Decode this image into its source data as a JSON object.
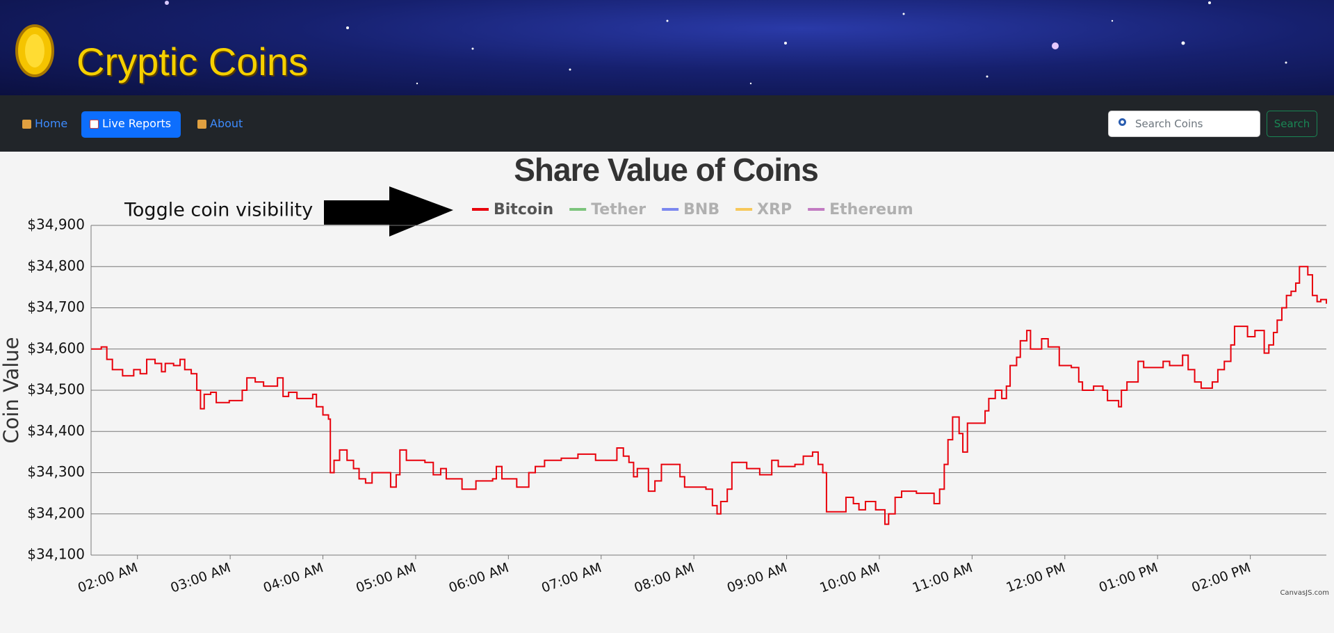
{
  "header": {
    "title": "Cryptic Coins"
  },
  "nav": {
    "links": [
      "Home",
      "Live Reports",
      "About"
    ],
    "active": 1,
    "search_placeholder": "Search Coins",
    "search_button": "Search"
  },
  "chart_data": {
    "type": "line",
    "step": true,
    "title": "Share Value of Coins",
    "annotation": "Toggle coin visibility",
    "credit": "CanvasJS.com",
    "y_label": "Coin Value",
    "x": [
      1.5,
      1.61,
      1.67,
      1.73,
      1.84,
      1.96,
      2.03,
      2.1,
      2.19,
      2.26,
      2.3,
      2.39,
      2.46,
      2.51,
      2.58,
      2.64,
      2.68,
      2.72,
      2.79,
      2.85,
      2.99,
      3.13,
      3.18,
      3.27,
      3.36,
      3.51,
      3.57,
      3.63,
      3.72,
      3.89,
      3.93,
      4.0,
      4.06,
      4.08,
      4.12,
      4.18,
      4.26,
      4.33,
      4.39,
      4.46,
      4.53,
      4.66,
      4.73,
      4.79,
      4.83,
      4.9,
      5.1,
      5.19,
      5.27,
      5.33,
      5.5,
      5.65,
      5.83,
      5.87,
      5.93,
      6.09,
      6.22,
      6.29,
      6.39,
      6.57,
      6.75,
      6.94,
      7.17,
      7.24,
      7.3,
      7.35,
      7.39,
      7.51,
      7.58,
      7.65,
      7.85,
      7.9,
      8.13,
      8.2,
      8.25,
      8.29,
      8.36,
      8.41,
      8.57,
      8.71,
      8.84,
      8.91,
      9.09,
      9.18,
      9.28,
      9.34,
      9.39,
      9.43,
      9.64,
      9.72,
      9.78,
      9.85,
      9.96,
      10.06,
      10.1,
      10.17,
      10.24,
      10.4,
      10.59,
      10.65,
      10.7,
      10.74,
      10.79,
      10.86,
      10.9,
      10.95,
      11.08,
      11.14,
      11.18,
      11.25,
      11.32,
      11.37,
      11.41,
      11.48,
      11.52,
      11.59,
      11.63,
      11.75,
      11.82,
      11.94,
      12.07,
      12.15,
      12.19,
      12.31,
      12.41,
      12.46,
      12.58,
      12.61,
      12.67,
      12.79,
      12.85,
      13.06,
      13.13,
      13.27,
      13.33,
      13.4,
      13.47,
      13.59,
      13.65,
      13.72,
      13.79,
      13.83,
      13.97,
      14.05,
      14.15,
      14.2,
      14.25,
      14.29,
      14.34,
      14.39,
      14.44,
      14.49,
      14.53,
      14.62,
      14.67,
      14.72,
      14.76,
      14.82
    ],
    "series": [
      {
        "name": "Bitcoin",
        "color": "#e8000b",
        "visible": true,
        "values": [
          34600,
          34605,
          34575,
          34550,
          34535,
          34550,
          34540,
          34575,
          34565,
          34545,
          34565,
          34560,
          34575,
          34550,
          34540,
          34500,
          34455,
          34490,
          34495,
          34470,
          34475,
          34500,
          34530,
          34520,
          34510,
          34530,
          34485,
          34495,
          34480,
          34490,
          34460,
          34440,
          34430,
          34300,
          34330,
          34355,
          34330,
          34310,
          34285,
          34275,
          34300,
          34300,
          34265,
          34295,
          34355,
          34330,
          34325,
          34295,
          34310,
          34285,
          34260,
          34280,
          34285,
          34315,
          34285,
          34265,
          34300,
          34315,
          34330,
          34335,
          34345,
          34330,
          34360,
          34340,
          34325,
          34290,
          34310,
          34255,
          34280,
          34320,
          34290,
          34265,
          34260,
          34220,
          34200,
          34230,
          34260,
          34325,
          34310,
          34295,
          34330,
          34315,
          34320,
          34340,
          34350,
          34320,
          34300,
          34205,
          34240,
          34225,
          34210,
          34230,
          34210,
          34175,
          34200,
          34240,
          34255,
          34250,
          34225,
          34260,
          34320,
          34380,
          34435,
          34395,
          34350,
          34420,
          34420,
          34450,
          34480,
          34500,
          34480,
          34510,
          34560,
          34580,
          34620,
          34645,
          34600,
          34625,
          34605,
          34560,
          34555,
          34520,
          34500,
          34510,
          34500,
          34475,
          34460,
          34500,
          34520,
          34570,
          34555,
          34570,
          34560,
          34585,
          34550,
          34520,
          34505,
          34520,
          34550,
          34570,
          34610,
          34655,
          34630,
          34645,
          34590,
          34610,
          34640,
          34670,
          34700,
          34730,
          34740,
          34760,
          34800,
          34780,
          34730,
          34715,
          34720,
          34710
        ]
      },
      {
        "name": "Tether",
        "color": "#7cc47c",
        "visible": false
      },
      {
        "name": "BNB",
        "color": "#7b87ef",
        "visible": false
      },
      {
        "name": "XRP",
        "color": "#f7c85a",
        "visible": false
      },
      {
        "name": "Ethereum",
        "color": "#c27bc2",
        "visible": false
      }
    ],
    "xlim": [
      1.5,
      14.82
    ],
    "xticks": [
      {
        "value": 2,
        "label": "02:00 AM"
      },
      {
        "value": 3,
        "label": "03:00 AM"
      },
      {
        "value": 4,
        "label": "04:00 AM"
      },
      {
        "value": 5,
        "label": "05:00 AM"
      },
      {
        "value": 6,
        "label": "06:00 AM"
      },
      {
        "value": 7,
        "label": "07:00 AM"
      },
      {
        "value": 8,
        "label": "08:00 AM"
      },
      {
        "value": 9,
        "label": "09:00 AM"
      },
      {
        "value": 10,
        "label": "10:00 AM"
      },
      {
        "value": 11,
        "label": "11:00 AM"
      },
      {
        "value": 12,
        "label": "12:00 PM"
      },
      {
        "value": 13,
        "label": "01:00 PM"
      },
      {
        "value": 14,
        "label": "02:00 PM"
      }
    ],
    "ylim": [
      34100,
      34900
    ],
    "yticks": [
      {
        "value": 34100,
        "label": "$34,100"
      },
      {
        "value": 34200,
        "label": "$34,200"
      },
      {
        "value": 34300,
        "label": "$34,300"
      },
      {
        "value": 34400,
        "label": "$34,400"
      },
      {
        "value": 34500,
        "label": "$34,500"
      },
      {
        "value": 34600,
        "label": "$34,600"
      },
      {
        "value": 34700,
        "label": "$34,700"
      },
      {
        "value": 34800,
        "label": "$34,800"
      },
      {
        "value": 34900,
        "label": "$34,900"
      }
    ],
    "grid": true
  }
}
